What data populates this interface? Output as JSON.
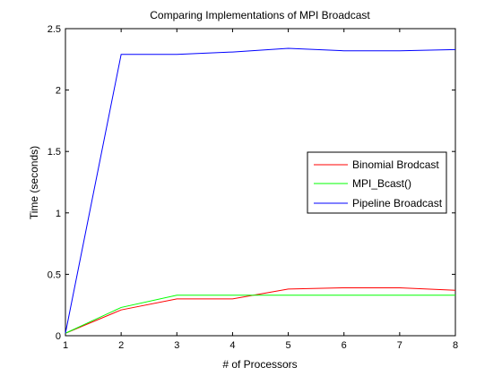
{
  "chart_data": {
    "type": "line",
    "title": "Comparing Implementations of MPI Broadcast",
    "xlabel": "# of Processors",
    "ylabel": "Time (seconds)",
    "xlim": [
      1,
      8
    ],
    "ylim": [
      0,
      2.5
    ],
    "x_ticks": [
      1,
      2,
      3,
      4,
      5,
      6,
      7,
      8
    ],
    "y_ticks": [
      0,
      0.5,
      1,
      1.5,
      2,
      2.5
    ],
    "x_tick_labels": [
      "1",
      "2",
      "3",
      "4",
      "5",
      "6",
      "7",
      "8"
    ],
    "y_tick_labels": [
      "0",
      "0.5",
      "1",
      "1.5",
      "2",
      "2.5"
    ],
    "grid": false,
    "legend_position": "right",
    "x": [
      1,
      2,
      3,
      4,
      5,
      6,
      7,
      8
    ],
    "series": [
      {
        "name": "Binomial Brodcast",
        "color": "#ff0000",
        "values": [
          0.02,
          0.21,
          0.3,
          0.3,
          0.38,
          0.39,
          0.39,
          0.37
        ]
      },
      {
        "name": "MPI_Bcast()",
        "color": "#00ff00",
        "values": [
          0.02,
          0.23,
          0.33,
          0.33,
          0.33,
          0.33,
          0.33,
          0.33
        ]
      },
      {
        "name": "Pipeline Broadcast",
        "color": "#0000ff",
        "values": [
          0.02,
          2.29,
          2.29,
          2.31,
          2.34,
          2.32,
          2.32,
          2.33
        ]
      }
    ]
  }
}
